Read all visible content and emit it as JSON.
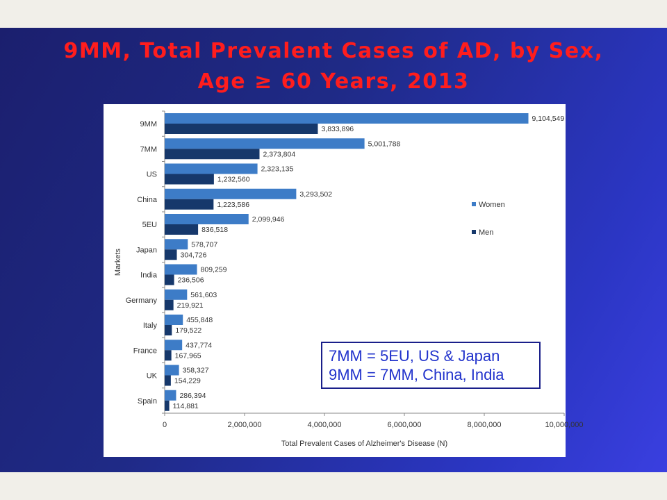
{
  "title": {
    "line1": "9MM, Total Prevalent Cases of AD, by Sex,",
    "line2": "Age ≥ 60 Years, 2013"
  },
  "note": {
    "line1": "7MM = 5EU, US & Japan",
    "line2": "9MM = 7MM, China, India"
  },
  "colors": {
    "women": "#3d7cc7",
    "men": "#16386b",
    "background_top": "#1b1f6e",
    "background_bottom": "#3a3fe0",
    "title": "#ff1d1d",
    "note_text": "#2233cc",
    "note_border": "#1a1f8a"
  },
  "chart_data": {
    "type": "bar",
    "orientation": "horizontal",
    "categories": [
      "9MM",
      "7MM",
      "US",
      "China",
      "5EU",
      "Japan",
      "India",
      "Germany",
      "Italy",
      "France",
      "UK",
      "Spain"
    ],
    "series": [
      {
        "name": "Women",
        "values": [
          9104549,
          5001788,
          2323135,
          3293502,
          2099946,
          578707,
          809259,
          561603,
          455848,
          437774,
          358327,
          286394
        ],
        "labels": [
          "9,104,549",
          "5,001,788",
          "2,323,135",
          "3,293,502",
          "2,099,946",
          "578,707",
          "809,259",
          "561,603",
          "455,848",
          "437,774",
          "358,327",
          "286,394"
        ]
      },
      {
        "name": "Men",
        "values": [
          3833896,
          2373804,
          1232560,
          1223586,
          836518,
          304726,
          236506,
          219921,
          179522,
          167965,
          154229,
          114881
        ],
        "labels": [
          "3,833,896",
          "2,373,804",
          "1,232,560",
          "1,223,586",
          "836,518",
          "304,726",
          "236,506",
          "219,921",
          "179,522",
          "167,965",
          "154,229",
          "114,881"
        ]
      }
    ],
    "xlabel": "Total Prevalent Cases of Alzheimer's Disease (N)",
    "ylabel": "Markets",
    "xlim": [
      0,
      10000000
    ],
    "xticks": [
      0,
      2000000,
      4000000,
      6000000,
      8000000,
      10000000
    ],
    "xtick_labels": [
      "0",
      "2,000,000",
      "4,000,000",
      "6,000,000",
      "8,000,000",
      "10,000,000"
    ],
    "grid": false,
    "legend": "right"
  }
}
